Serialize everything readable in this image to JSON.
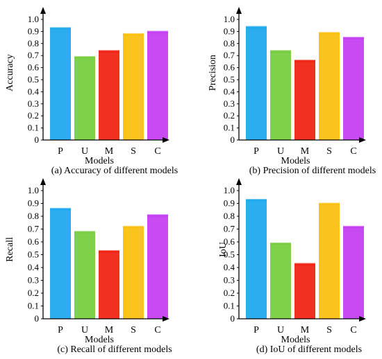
{
  "chart_data": [
    {
      "type": "bar",
      "caption": "(a) Accuracy of different models",
      "xlabel": "Models",
      "ylabel": "Accuracy",
      "categories": [
        "P",
        "U",
        "M",
        "S",
        "C"
      ],
      "values": [
        0.93,
        0.69,
        0.74,
        0.88,
        0.9
      ],
      "ylim": [
        0,
        1.0
      ],
      "yticks": [
        "0",
        "0.1",
        "0.2",
        "0.3",
        "0.4",
        "0.5",
        "0.6",
        "0.7",
        "0.8",
        "0.9",
        "1.0"
      ]
    },
    {
      "type": "bar",
      "caption": "(b) Precision of different models",
      "xlabel": "Models",
      "ylabel": "Precision",
      "categories": [
        "P",
        "U",
        "M",
        "S",
        "C"
      ],
      "values": [
        0.94,
        0.74,
        0.66,
        0.89,
        0.85
      ],
      "ylim": [
        0,
        1.0
      ],
      "yticks": [
        "0",
        "0.1",
        "0.2",
        "0.3",
        "0.4",
        "0.5",
        "0.6",
        "0.7",
        "0.8",
        "0.9",
        "1.0"
      ]
    },
    {
      "type": "bar",
      "caption": "(c) Recall of different models",
      "xlabel": "Models",
      "ylabel": "Recall",
      "categories": [
        "P",
        "U",
        "M",
        "S",
        "C"
      ],
      "values": [
        0.86,
        0.68,
        0.53,
        0.72,
        0.81
      ],
      "ylim": [
        0,
        1.0
      ],
      "yticks": [
        "0",
        "0.1",
        "0.2",
        "0.3",
        "0.4",
        "0.5",
        "0.6",
        "0.7",
        "0.8",
        "0.9",
        "1.0"
      ]
    },
    {
      "type": "bar",
      "caption": "(d) IoU of different models",
      "xlabel": "Models",
      "ylabel": "IoU",
      "categories": [
        "P",
        "U",
        "M",
        "S",
        "C"
      ],
      "values": [
        0.93,
        0.59,
        0.43,
        0.9,
        0.72
      ],
      "ylim": [
        0,
        1.0
      ],
      "yticks": [
        "0",
        "0.1",
        "0.2",
        "0.3",
        "0.4",
        "0.5",
        "0.6",
        "0.7",
        "0.8",
        "0.9",
        "1.0"
      ]
    }
  ],
  "colors": [
    "#1aa6ee",
    "#74cc3c",
    "#f01e0e",
    "#fbbe0a",
    "#c23bf2"
  ]
}
